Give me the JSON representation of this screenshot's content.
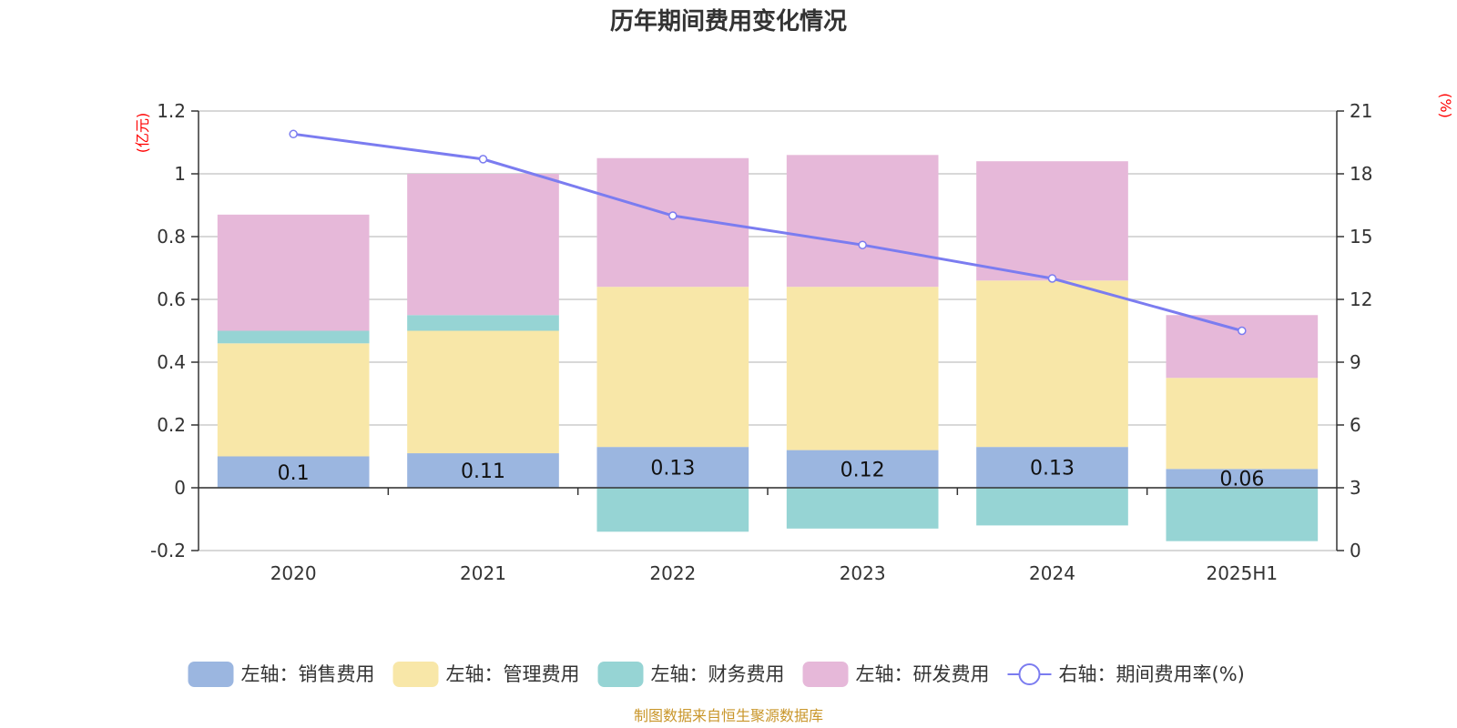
{
  "chart_data": {
    "type": "bar",
    "title": "历年期间费用变化情况",
    "categories": [
      "2020",
      "2021",
      "2022",
      "2023",
      "2024",
      "2025H1"
    ],
    "left_axis": {
      "unit": "(亿元)",
      "ylim": [
        -0.2,
        1.2
      ],
      "ticks": [
        "-0.2",
        "0",
        "0.2",
        "0.4",
        "0.6",
        "0.8",
        "1",
        "1.2"
      ]
    },
    "right_axis": {
      "unit": "(%)",
      "ylim": [
        0,
        21
      ],
      "ticks": [
        "0",
        "3",
        "6",
        "9",
        "12",
        "15",
        "18",
        "21"
      ]
    },
    "series": [
      {
        "name": "左轴：销售费用",
        "type": "bar",
        "axis": "left",
        "color": "#9bb6e0",
        "values": [
          0.1,
          0.11,
          0.13,
          0.12,
          0.13,
          0.06
        ],
        "labels": [
          "0.1",
          "0.11",
          "0.13",
          "0.12",
          "0.13",
          "0.06"
        ]
      },
      {
        "name": "左轴：管理费用",
        "type": "bar",
        "axis": "left",
        "color": "#f8e7a8",
        "values": [
          0.36,
          0.39,
          0.51,
          0.52,
          0.53,
          0.29
        ]
      },
      {
        "name": "左轴：财务费用",
        "type": "bar",
        "axis": "left",
        "color": "#96d4d4",
        "values": [
          0.04,
          0.05,
          -0.14,
          -0.13,
          -0.12,
          -0.17
        ]
      },
      {
        "name": "左轴：研发费用",
        "type": "bar",
        "axis": "left",
        "color": "#e6b8d9",
        "values": [
          0.37,
          0.45,
          0.41,
          0.42,
          0.38,
          0.2
        ]
      },
      {
        "name": "右轴：期间费用率(%)",
        "type": "line",
        "axis": "right",
        "color": "#7b7cf0",
        "values": [
          19.9,
          18.7,
          16.0,
          14.6,
          13.0,
          10.5
        ]
      }
    ],
    "legend_position": "bottom",
    "grid": true
  },
  "footer": {
    "source": "制图数据来自恒生聚源数据库"
  }
}
